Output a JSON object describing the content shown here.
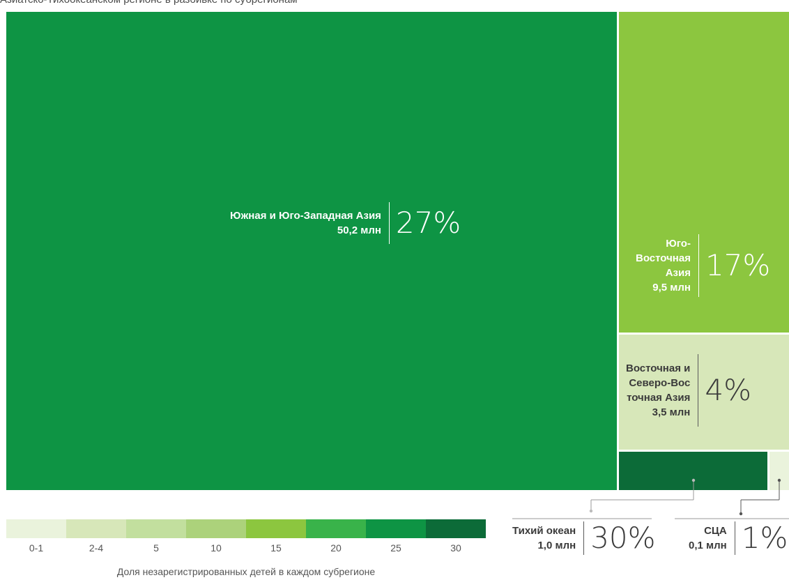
{
  "title": "Азиатско-Тихоокеанском регионе в разбивке по субрегионам",
  "chart_data": {
    "type": "treemap",
    "title": "Азиатско-Тихоокеанском регионе в разбивке по субрегионам",
    "value_unit": "млн",
    "color_variable": "Доля незарегистрированных детей в каждом субрегионе",
    "regions": [
      {
        "name": "Южная и Юго-Западная Азия",
        "value_text": "50,2 млн",
        "value": 50.2,
        "share_text": "27%",
        "share": 27,
        "color": "#0e9444"
      },
      {
        "name": "Юго-Восточная Азия",
        "value_text": "9,5 млн",
        "value": 9.5,
        "share_text": "17%",
        "share": 17,
        "color": "#8cc63f"
      },
      {
        "name": "Восточная и Северо-Восточная Азия",
        "value_text": "3,5 млн",
        "value": 3.5,
        "share_text": "4%",
        "share": 4,
        "color": "#d7e7b9"
      },
      {
        "name": "Тихий океан",
        "value_text": "1,0 млн",
        "value": 1.0,
        "share_text": "30%",
        "share": 30,
        "color": "#0c6b38"
      },
      {
        "name": "СЦА",
        "value_text": "0,1 млн",
        "value": 0.1,
        "share_text": "1%",
        "share": 1,
        "color": "#eaf3dc"
      }
    ],
    "legend": {
      "title": "Доля незарегистрированных детей в каждом субрегионе",
      "bins": [
        "0-1",
        "2-4",
        "5",
        "10",
        "15",
        "20",
        "25",
        "30"
      ],
      "colors": [
        "#eaf3dc",
        "#d7e7b9",
        "#c2df9e",
        "#acd27b",
        "#8cc63f",
        "#39b34a",
        "#0e9444",
        "#0c6b38"
      ]
    }
  },
  "labels": {
    "south_asia": {
      "name": "Южная и Юго-Западная Азия",
      "value": "50,2 млн",
      "pct": "27%"
    },
    "southeast_asia": {
      "line1": "Юго-",
      "line2": "Восточная",
      "line3": "Азия",
      "value": "9,5 млн",
      "pct": "17%"
    },
    "east_asia": {
      "line1": "Восточная и",
      "line2": "Северо-Вос",
      "line3": "точная Азия",
      "value": "3,5 млн",
      "pct": "4%"
    },
    "pacific": {
      "name": "Тихий океан",
      "value": "1,0 млн",
      "pct": "30%"
    },
    "sca": {
      "name": "СЦА",
      "value": "0,1 млн",
      "pct": "1%"
    }
  }
}
